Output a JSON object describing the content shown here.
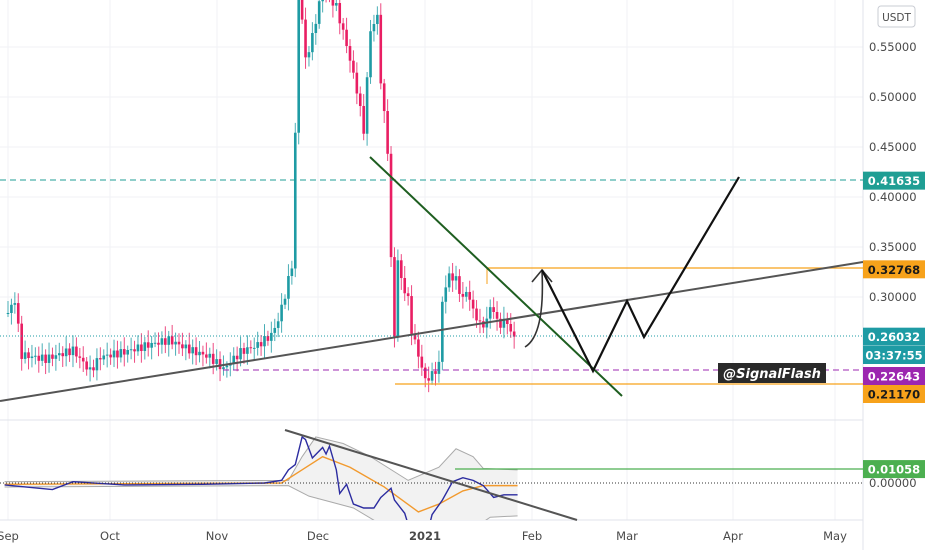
{
  "chart_data": [
    {
      "type": "candlestick",
      "currency_label": "USDT",
      "x_ticks": [
        "Sep",
        "Oct",
        "Nov",
        "Dec",
        "2021",
        "Feb",
        "Mar",
        "Apr",
        "May"
      ],
      "y_ticks": [
        "0.55000",
        "0.50000",
        "0.45000",
        "0.40000",
        "0.35000",
        "0.30000"
      ],
      "ylim": [
        0.18,
        0.597
      ],
      "grid": true,
      "colors": {
        "up": "#1e9ba4",
        "down": "#e91e63"
      },
      "close_series": [
        [
          "2020-09-01",
          0.284
        ],
        [
          "2020-09-03",
          0.297
        ],
        [
          "2020-09-05",
          0.242
        ],
        [
          "2020-09-12",
          0.238
        ],
        [
          "2020-09-20",
          0.247
        ],
        [
          "2020-09-25",
          0.226
        ],
        [
          "2020-09-28",
          0.24
        ],
        [
          "2020-10-05",
          0.245
        ],
        [
          "2020-10-12",
          0.252
        ],
        [
          "2020-10-18",
          0.257
        ],
        [
          "2020-10-25",
          0.246
        ],
        [
          "2020-10-30",
          0.24
        ],
        [
          "2020-11-03",
          0.228
        ],
        [
          "2020-11-08",
          0.245
        ],
        [
          "2020-11-13",
          0.252
        ],
        [
          "2020-11-17",
          0.262
        ],
        [
          "2020-11-19",
          0.277
        ],
        [
          "2020-11-21",
          0.302
        ],
        [
          "2020-11-23",
          0.332
        ],
        [
          "2020-11-24",
          0.462
        ],
        [
          "2020-11-25",
          0.62
        ],
        [
          "2020-11-27",
          0.537
        ],
        [
          "2020-11-29",
          0.56
        ],
        [
          "2020-12-02",
          0.61
        ],
        [
          "2020-12-06",
          0.59
        ],
        [
          "2020-12-09",
          0.552
        ],
        [
          "2020-12-12",
          0.507
        ],
        [
          "2020-12-14",
          0.467
        ],
        [
          "2020-12-16",
          0.567
        ],
        [
          "2020-12-18",
          0.58
        ],
        [
          "2020-12-19",
          0.517
        ],
        [
          "2020-12-21",
          0.447
        ],
        [
          "2020-12-22",
          0.337
        ],
        [
          "2020-12-23",
          0.262
        ],
        [
          "2020-12-24",
          0.337
        ],
        [
          "2020-12-25",
          0.317
        ],
        [
          "2020-12-27",
          0.297
        ],
        [
          "2020-12-28",
          0.267
        ],
        [
          "2020-12-30",
          0.242
        ],
        [
          "2021-01-01",
          0.217
        ],
        [
          "2021-01-03",
          0.222
        ],
        [
          "2021-01-05",
          0.232
        ],
        [
          "2021-01-06",
          0.297
        ],
        [
          "2021-01-08",
          0.322
        ],
        [
          "2021-01-10",
          0.317
        ],
        [
          "2021-01-12",
          0.297
        ],
        [
          "2021-01-13",
          0.307
        ],
        [
          "2021-01-15",
          0.287
        ],
        [
          "2021-01-17",
          0.272
        ],
        [
          "2021-01-19",
          0.275
        ],
        [
          "2021-01-20",
          0.292
        ],
        [
          "2021-01-22",
          0.277
        ],
        [
          "2021-01-23",
          0.272
        ],
        [
          "2021-01-25",
          0.277
        ],
        [
          "2021-01-26",
          0.262
        ],
        [
          "2021-01-27",
          0.26032
        ]
      ],
      "price_tags": [
        {
          "value": 0.41635,
          "label": "0.41635",
          "color": "#1f9e94",
          "text_color": "#ffffff"
        },
        {
          "value": 0.32768,
          "label": "0.32768",
          "color": "#f7a21b",
          "text_color": "#1a1a1a"
        },
        {
          "value": 0.26032,
          "label": "0.26032",
          "color": "#1e9ba4",
          "text_color": "#ffffff"
        },
        {
          "value": 0.22643,
          "label": "0.22643",
          "color": "#9c27b0",
          "text_color": "#ffffff"
        },
        {
          "value": 0.2117,
          "label": "0.21170",
          "color": "#f7a21b",
          "text_color": "#1a1a1a"
        }
      ],
      "countdown": "03:37:55",
      "watermark": "@SignalFlash"
    },
    {
      "type": "line",
      "y_ticks": [
        "0.00000"
      ],
      "level_tag": {
        "value": 0.01058,
        "label": "0.01058",
        "color": "#4caf50"
      },
      "series": [
        {
          "color": "#2c2ca0",
          "points": [
            [
              "2020-08-31",
              -0.0015
            ],
            [
              "2020-09-14",
              -0.005
            ],
            [
              "2020-09-20",
              0.001
            ],
            [
              "2020-10-05",
              -0.0015
            ],
            [
              "2020-10-28",
              -0.001
            ],
            [
              "2020-11-15",
              0.0
            ],
            [
              "2020-11-20",
              0.002
            ],
            [
              "2020-11-22",
              0.01
            ],
            [
              "2020-11-24",
              0.014
            ],
            [
              "2020-11-26",
              0.035
            ],
            [
              "2020-11-27",
              0.033
            ],
            [
              "2020-11-29",
              0.019
            ],
            [
              "2020-12-02",
              0.027
            ],
            [
              "2020-12-03",
              0.022
            ],
            [
              "2020-12-04",
              0.028
            ],
            [
              "2020-12-06",
              0.01
            ],
            [
              "2020-12-07",
              -0.008
            ],
            [
              "2020-12-09",
              -0.001
            ],
            [
              "2020-12-11",
              -0.016
            ],
            [
              "2020-12-14",
              -0.019
            ],
            [
              "2020-12-17",
              -0.019
            ],
            [
              "2020-12-19",
              -0.011
            ],
            [
              "2020-12-22",
              -0.004
            ],
            [
              "2020-12-23",
              -0.013
            ],
            [
              "2020-12-26",
              -0.023
            ],
            [
              "2020-12-28",
              -0.04
            ],
            [
              "2021-01-01",
              -0.045
            ],
            [
              "2021-01-03",
              -0.024
            ],
            [
              "2021-01-06",
              -0.013
            ],
            [
              "2021-01-09",
              0.001
            ],
            [
              "2021-01-12",
              0.004
            ],
            [
              "2021-01-15",
              0.002
            ],
            [
              "2021-01-18",
              -0.002
            ],
            [
              "2021-01-21",
              -0.011
            ],
            [
              "2021-01-24",
              -0.009
            ],
            [
              "2021-01-28",
              -0.009
            ]
          ]
        },
        {
          "color": "#f29a2e",
          "points": [
            [
              "2020-08-31",
              -0.001
            ],
            [
              "2020-11-20",
              0.0
            ],
            [
              "2020-11-26",
              0.01
            ],
            [
              "2020-12-02",
              0.02
            ],
            [
              "2020-12-10",
              0.012
            ],
            [
              "2020-12-20",
              -0.003
            ],
            [
              "2020-12-30",
              -0.022
            ],
            [
              "2021-01-05",
              -0.016
            ],
            [
              "2021-01-12",
              -0.006
            ],
            [
              "2021-01-18",
              -0.002
            ],
            [
              "2021-01-28",
              -0.002
            ]
          ]
        },
        {
          "color": "#aaaaaa",
          "points": [
            [
              "2020-08-31",
              0.001
            ],
            [
              "2020-11-22",
              0.002
            ],
            [
              "2020-11-26",
              0.02
            ],
            [
              "2020-11-30",
              0.035
            ],
            [
              "2020-12-08",
              0.03
            ],
            [
              "2020-12-16",
              0.02
            ],
            [
              "2020-12-27",
              0.002
            ],
            [
              "2021-01-05",
              0.012
            ],
            [
              "2021-01-10",
              0.026
            ],
            [
              "2021-01-15",
              0.02
            ],
            [
              "2021-01-18",
              0.011
            ],
            [
              "2021-01-28",
              0.01
            ]
          ]
        },
        {
          "color": "#aaaaaa",
          "points": [
            [
              "2020-08-31",
              -0.003
            ],
            [
              "2020-11-22",
              -0.002
            ],
            [
              "2020-11-28",
              -0.01
            ],
            [
              "2020-12-11",
              -0.019
            ],
            [
              "2020-12-22",
              -0.036
            ],
            [
              "2021-01-02",
              -0.04
            ],
            [
              "2021-01-12",
              -0.04
            ],
            [
              "2021-01-20",
              -0.026
            ],
            [
              "2021-01-28",
              -0.025
            ]
          ]
        }
      ]
    }
  ]
}
